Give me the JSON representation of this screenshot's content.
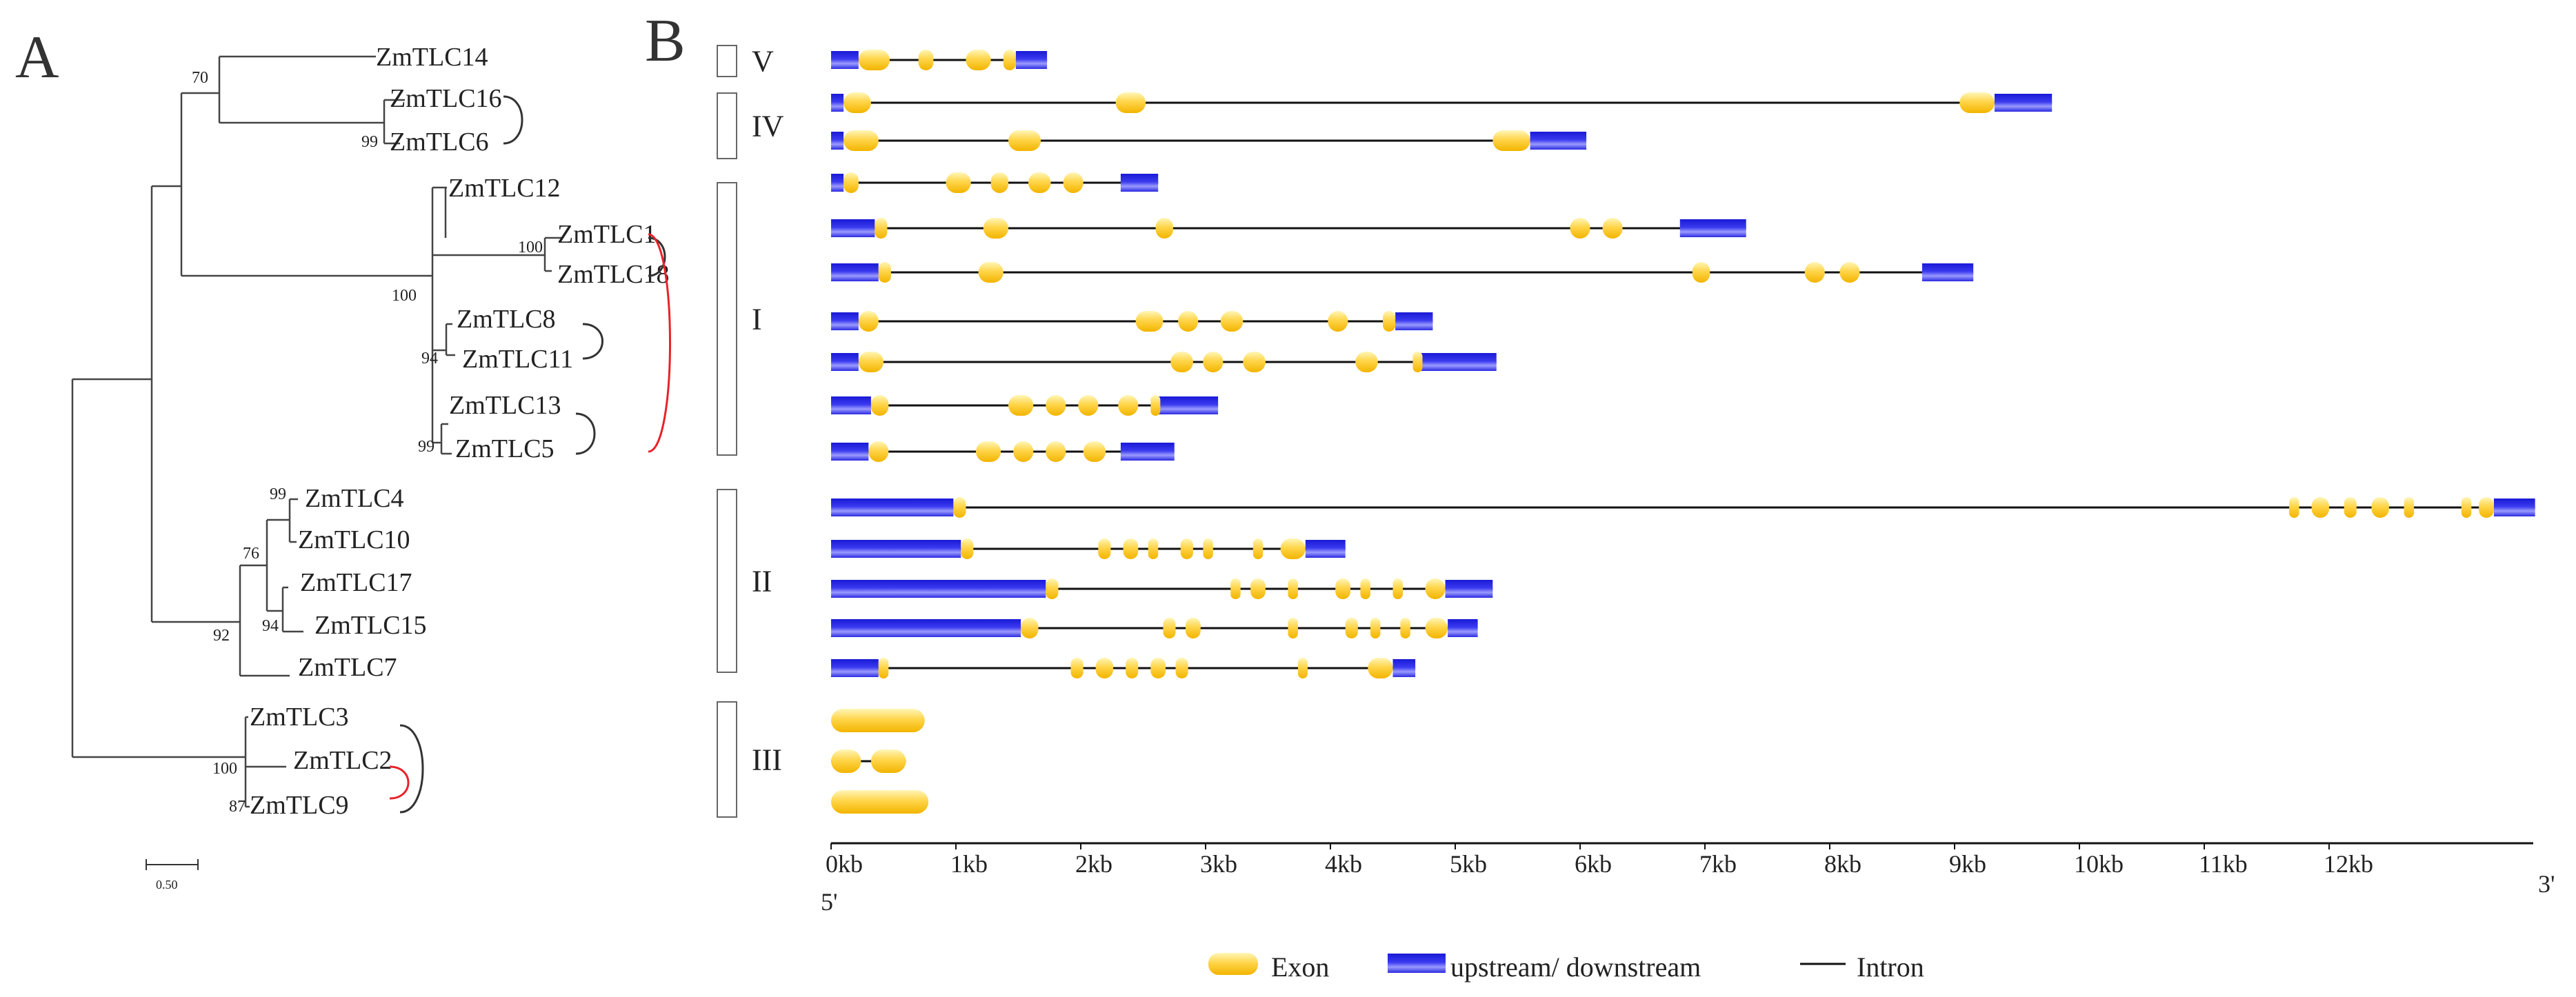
{
  "panels": {
    "a": "A",
    "b": "B"
  },
  "tree": {
    "leaves": [
      {
        "id": "ZmTLC14",
        "label": "ZmTLC14"
      },
      {
        "id": "ZmTLC16",
        "label": "ZmTLC16"
      },
      {
        "id": "ZmTLC6",
        "label": "ZmTLC6"
      },
      {
        "id": "ZmTLC12",
        "label": "ZmTLC12"
      },
      {
        "id": "ZmTLC1",
        "label": "ZmTLC1"
      },
      {
        "id": "ZmTLC18",
        "label": "ZmTLC18"
      },
      {
        "id": "ZmTLC8",
        "label": "ZmTLC8"
      },
      {
        "id": "ZmTLC11",
        "label": "ZmTLC11"
      },
      {
        "id": "ZmTLC13",
        "label": "ZmTLC13"
      },
      {
        "id": "ZmTLC5",
        "label": "ZmTLC5"
      },
      {
        "id": "ZmTLC4",
        "label": "ZmTLC4"
      },
      {
        "id": "ZmTLC10",
        "label": "ZmTLC10"
      },
      {
        "id": "ZmTLC17",
        "label": "ZmTLC17"
      },
      {
        "id": "ZmTLC15",
        "label": "ZmTLC15"
      },
      {
        "id": "ZmTLC7",
        "label": "ZmTLC7"
      },
      {
        "id": "ZmTLC3",
        "label": "ZmTLC3"
      },
      {
        "id": "ZmTLC2",
        "label": "ZmTLC2"
      },
      {
        "id": "ZmTLC9",
        "label": "ZmTLC9"
      }
    ],
    "bootstrap": [
      "70",
      "99",
      "100",
      "100",
      "94",
      "99",
      "99",
      "76",
      "94",
      "92",
      "100",
      "87"
    ],
    "scale_label": "0.50",
    "duplication_pairs": [
      {
        "a": "ZmTLC16",
        "b": "ZmTLC6",
        "color": "#333333"
      },
      {
        "a": "ZmTLC1",
        "b": "ZmTLC18",
        "color": "#333333"
      },
      {
        "a": "ZmTLC8",
        "b": "ZmTLC11",
        "color": "#333333"
      },
      {
        "a": "ZmTLC13",
        "b": "ZmTLC5",
        "color": "#333333"
      },
      {
        "a": "ZmTLC1",
        "b": "ZmTLC5",
        "color": "#e8222a"
      },
      {
        "a": "ZmTLC3",
        "b": "ZmTLC9",
        "color": "#333333"
      },
      {
        "a": "ZmTLC2",
        "b": "ZmTLC9",
        "color": "#e8222a"
      }
    ]
  },
  "groups": [
    "V",
    "IV",
    "I",
    "II",
    "III"
  ],
  "gene_structures": [
    {
      "gene": "ZmTLC14",
      "group": "V",
      "span": [
        0,
        1.73
      ],
      "utr": [
        [
          0,
          0.22
        ],
        [
          1.48,
          1.73
        ]
      ],
      "exons": [
        [
          0.22,
          0.47
        ],
        [
          0.7,
          0.82
        ],
        [
          1.08,
          1.28
        ],
        [
          1.38,
          1.48
        ]
      ]
    },
    {
      "gene": "ZmTLC16",
      "group": "IV",
      "span": [
        0,
        9.78
      ],
      "utr": [
        [
          0,
          0.1
        ],
        [
          9.32,
          9.78
        ]
      ],
      "exons": [
        [
          0.1,
          0.32
        ],
        [
          2.28,
          2.52
        ],
        [
          9.04,
          9.32
        ]
      ]
    },
    {
      "gene": "ZmTLC6",
      "group": "IV",
      "span": [
        0,
        6.05
      ],
      "utr": [
        [
          0,
          0.1
        ],
        [
          5.6,
          6.05
        ]
      ],
      "exons": [
        [
          0.1,
          0.38
        ],
        [
          1.42,
          1.68
        ],
        [
          5.3,
          5.6
        ]
      ]
    },
    {
      "gene": "ZmTLC12",
      "group": "I",
      "span": [
        0,
        2.62
      ],
      "utr": [
        [
          0,
          0.1
        ],
        [
          2.32,
          2.62
        ]
      ],
      "exons": [
        [
          0.1,
          0.22
        ],
        [
          0.92,
          1.12
        ],
        [
          1.28,
          1.42
        ],
        [
          1.58,
          1.76
        ],
        [
          1.86,
          2.02
        ]
      ]
    },
    {
      "gene": "ZmTLC1",
      "group": "I",
      "span": [
        0,
        7.33
      ],
      "utr": [
        [
          0,
          0.35
        ],
        [
          6.8,
          7.33
        ]
      ],
      "exons": [
        [
          0.35,
          0.45
        ],
        [
          1.22,
          1.42
        ],
        [
          2.6,
          2.74
        ],
        [
          5.92,
          6.08
        ],
        [
          6.18,
          6.34
        ]
      ]
    },
    {
      "gene": "ZmTLC18",
      "group": "I",
      "span": [
        0,
        9.15
      ],
      "utr": [
        [
          0,
          0.38
        ],
        [
          8.74,
          9.15
        ]
      ],
      "exons": [
        [
          0.38,
          0.48
        ],
        [
          1.18,
          1.38
        ],
        [
          6.9,
          7.04
        ],
        [
          7.8,
          7.96
        ],
        [
          8.08,
          8.24
        ]
      ]
    },
    {
      "gene": "ZmTLC8",
      "group": "I",
      "span": [
        0,
        4.82
      ],
      "utr": [
        [
          0,
          0.22
        ],
        [
          4.52,
          4.82
        ]
      ],
      "exons": [
        [
          0.22,
          0.38
        ],
        [
          2.44,
          2.66
        ],
        [
          2.78,
          2.94
        ],
        [
          3.12,
          3.3
        ],
        [
          3.98,
          4.14
        ],
        [
          4.42,
          4.52
        ]
      ]
    },
    {
      "gene": "ZmTLC11",
      "group": "I",
      "span": [
        0,
        5.33
      ],
      "utr": [
        [
          0,
          0.22
        ],
        [
          4.72,
          5.33
        ]
      ],
      "exons": [
        [
          0.22,
          0.42
        ],
        [
          2.72,
          2.9
        ],
        [
          2.98,
          3.14
        ],
        [
          3.3,
          3.48
        ],
        [
          4.2,
          4.38
        ],
        [
          4.66,
          4.72
        ]
      ]
    },
    {
      "gene": "ZmTLC13",
      "group": "I",
      "span": [
        0,
        3.1
      ],
      "utr": [
        [
          0,
          0.32
        ],
        [
          2.6,
          3.1
        ]
      ],
      "exons": [
        [
          0.32,
          0.46
        ],
        [
          1.42,
          1.62
        ],
        [
          1.72,
          1.88
        ],
        [
          1.98,
          2.14
        ],
        [
          2.3,
          2.46
        ],
        [
          2.56,
          2.6
        ]
      ]
    },
    {
      "gene": "ZmTLC5",
      "group": "I",
      "span": [
        0,
        2.75
      ],
      "utr": [
        [
          0,
          0.3
        ],
        [
          2.32,
          2.75
        ]
      ],
      "exons": [
        [
          0.3,
          0.46
        ],
        [
          1.16,
          1.36
        ],
        [
          1.46,
          1.62
        ],
        [
          1.72,
          1.88
        ],
        [
          2.02,
          2.2
        ]
      ]
    },
    {
      "gene": "ZmTLC4",
      "group": "II",
      "span": [
        0,
        13.65
      ],
      "utr": [
        [
          0,
          0.98
        ],
        [
          13.32,
          13.65
        ]
      ],
      "exons": [
        [
          0.98,
          1.08
        ],
        [
          11.68,
          11.76
        ],
        [
          11.86,
          12.0
        ],
        [
          12.12,
          12.22
        ],
        [
          12.34,
          12.48
        ],
        [
          12.6,
          12.68
        ],
        [
          13.06,
          13.14
        ],
        [
          13.2,
          13.32
        ]
      ]
    },
    {
      "gene": "ZmTLC10",
      "group": "II",
      "span": [
        0,
        4.12
      ],
      "utr": [
        [
          0,
          1.04
        ],
        [
          3.8,
          4.12
        ]
      ],
      "exons": [
        [
          1.04,
          1.14
        ],
        [
          2.14,
          2.24
        ],
        [
          2.34,
          2.46
        ],
        [
          2.54,
          2.62
        ],
        [
          2.8,
          2.9
        ],
        [
          2.98,
          3.06
        ],
        [
          3.38,
          3.46
        ],
        [
          3.6,
          3.8
        ]
      ]
    },
    {
      "gene": "ZmTLC17",
      "group": "II",
      "span": [
        0,
        5.3
      ],
      "utr": [
        [
          0,
          1.72
        ],
        [
          4.92,
          5.3
        ]
      ],
      "exons": [
        [
          1.72,
          1.82
        ],
        [
          3.2,
          3.28
        ],
        [
          3.36,
          3.48
        ],
        [
          3.66,
          3.74
        ],
        [
          4.04,
          4.16
        ],
        [
          4.24,
          4.32
        ],
        [
          4.5,
          4.58
        ],
        [
          4.76,
          4.92
        ]
      ]
    },
    {
      "gene": "ZmTLC15",
      "group": "II",
      "span": [
        0,
        5.18
      ],
      "utr": [
        [
          0,
          1.52
        ],
        [
          4.94,
          5.18
        ]
      ],
      "exons": [
        [
          1.52,
          1.66
        ],
        [
          2.66,
          2.76
        ],
        [
          2.84,
          2.96
        ],
        [
          3.66,
          3.74
        ],
        [
          4.12,
          4.22
        ],
        [
          4.32,
          4.4
        ],
        [
          4.56,
          4.64
        ],
        [
          4.76,
          4.94
        ]
      ]
    },
    {
      "gene": "ZmTLC7",
      "group": "II",
      "span": [
        0,
        4.68
      ],
      "utr": [
        [
          0,
          0.38
        ],
        [
          4.5,
          4.68
        ]
      ],
      "exons": [
        [
          0.38,
          0.46
        ],
        [
          1.92,
          2.02
        ],
        [
          2.12,
          2.26
        ],
        [
          2.36,
          2.46
        ],
        [
          2.56,
          2.68
        ],
        [
          2.76,
          2.86
        ],
        [
          3.74,
          3.8
        ],
        [
          4.3,
          4.5
        ]
      ]
    },
    {
      "gene": "ZmTLC3",
      "group": "III",
      "span": [
        0,
        0.75
      ],
      "utr": [],
      "exons": [
        [
          0,
          0.75
        ]
      ]
    },
    {
      "gene": "ZmTLC2",
      "group": "III",
      "span": [
        0,
        0.6
      ],
      "utr": [],
      "exons": [
        [
          0,
          0.24
        ],
        [
          0.32,
          0.6
        ]
      ]
    },
    {
      "gene": "ZmTLC9",
      "group": "III",
      "span": [
        0,
        0.78
      ],
      "utr": [],
      "exons": [
        [
          0,
          0.78
        ]
      ]
    }
  ],
  "axis": {
    "ticks": [
      "0kb",
      "1kb",
      "2kb",
      "3kb",
      "4kb",
      "5kb",
      "6kb",
      "7kb",
      "8kb",
      "9kb",
      "10kb",
      "11kb",
      "12kb"
    ],
    "tick_values": [
      0,
      1,
      2,
      3,
      4,
      5,
      6,
      7,
      8,
      9,
      10,
      11,
      12
    ],
    "max_kb": 13.65,
    "five_prime": "5'",
    "three_prime": "3'"
  },
  "legend": {
    "exon": "Exon",
    "utr": "upstream/ downstream",
    "intron": "Intron"
  },
  "colors": {
    "exon": "#ffd54a",
    "exon_light": "#fff2a8",
    "utr": "#1a1ad6",
    "utr_light": "#a8a8ff",
    "intron": "#111111",
    "highlight": "#e8222a"
  }
}
